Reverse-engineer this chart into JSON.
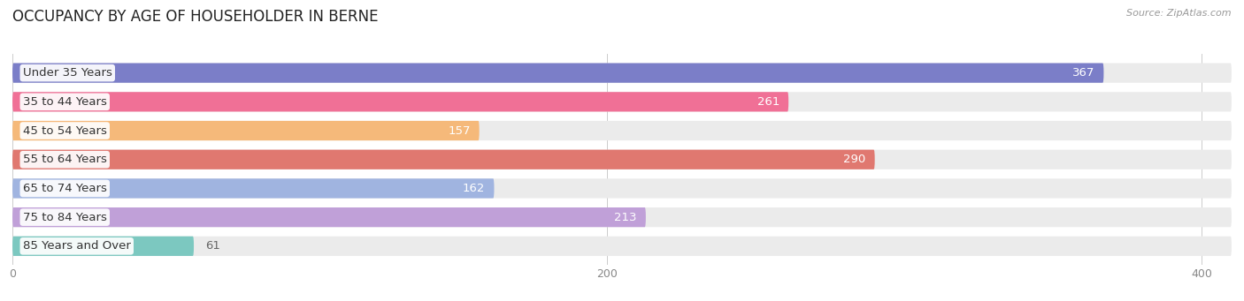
{
  "title": "OCCUPANCY BY AGE OF HOUSEHOLDER IN BERNE",
  "source": "Source: ZipAtlas.com",
  "categories": [
    "Under 35 Years",
    "35 to 44 Years",
    "45 to 54 Years",
    "55 to 64 Years",
    "65 to 74 Years",
    "75 to 84 Years",
    "85 Years and Over"
  ],
  "values": [
    367,
    261,
    157,
    290,
    162,
    213,
    61
  ],
  "bar_colors": [
    "#7b7ec8",
    "#f07096",
    "#f5b97a",
    "#e07870",
    "#a0b4e0",
    "#c0a0d8",
    "#7cc8c0"
  ],
  "bar_bg_color": "#ebebeb",
  "value_colors": [
    "white",
    "white",
    "#666666",
    "white",
    "#666666",
    "#666666",
    "#666666"
  ],
  "xlim_max": 410,
  "xticks": [
    0,
    200,
    400
  ],
  "background_color": "#ffffff",
  "title_fontsize": 12,
  "bar_height": 0.68,
  "label_fontsize": 9.5,
  "value_fontsize": 9.5,
  "source_fontsize": 8,
  "rounding_size": 0.34
}
